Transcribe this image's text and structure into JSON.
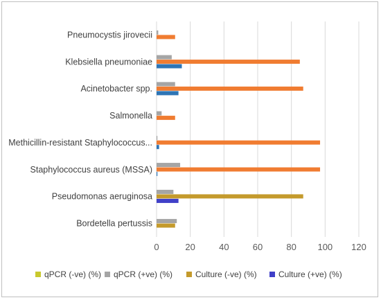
{
  "chart_data": {
    "type": "bar",
    "orientation": "horizontal",
    "categories": [
      "Pneumocystis jirovecii",
      "Klebsiella pneumoniae",
      "Acinetobacter spp.",
      "Salmonella",
      "Methicillin-resistant Staphylococcus...",
      "Staphylococcus aureus (MSSA)",
      "Pseudomonas aeruginosa",
      "Bordetella pertussis"
    ],
    "series": [
      {
        "name": "qPCR (-ve) (%)",
        "color": "#c9c92e",
        "values": [
          0,
          0,
          0,
          0,
          0,
          0,
          0,
          0
        ]
      },
      {
        "name": "qPCR (+ve) (%)",
        "color": "#a5a5a5",
        "values": [
          1,
          9,
          11,
          3,
          0.5,
          14,
          10,
          12
        ]
      },
      {
        "name": "Culture (-ve) (%)",
        "color": "#c49a2c",
        "values": [
          0,
          0,
          0,
          0,
          0,
          0,
          87,
          11
        ]
      },
      {
        "name": "Culture (+ve) (%)",
        "color": "#4040c8",
        "values": [
          0,
          0,
          0,
          0,
          0,
          0,
          13,
          0
        ]
      }
    ],
    "extra_series": [
      {
        "color": "#f07c31",
        "values": [
          11,
          85,
          87,
          11,
          97,
          97,
          0,
          0
        ]
      },
      {
        "color": "#2e75b6",
        "values": [
          0,
          15,
          13,
          0,
          1.5,
          0.5,
          0,
          0
        ]
      }
    ],
    "xticks": [
      "0",
      "20",
      "40",
      "60",
      "80",
      "100",
      "120"
    ],
    "xlim": [
      0,
      120
    ],
    "grid": true,
    "legend_position": "bottom"
  }
}
